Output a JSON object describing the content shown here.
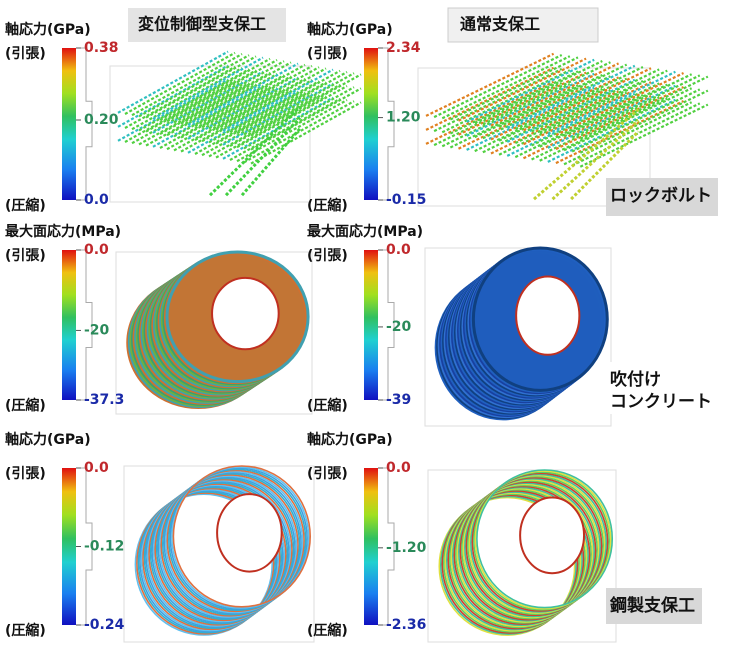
{
  "column_headers": [
    "変位制御型支保工",
    "通常支保工"
  ],
  "rows": [
    {
      "label_lines": [
        "ロックボルト"
      ],
      "panels": [
        {
          "quantity": "軸応力(GPa)",
          "tension": "(引張)",
          "compression": "(圧縮)",
          "lim": [
            0,
            0.38
          ],
          "ticks": [
            0.38,
            {
              "value": 0.2,
              "label": "0.20"
            },
            {
              "value": 0,
              "label": "0.0"
            }
          ]
        },
        {
          "quantity": "軸応力(GPa)",
          "tension": "(引張)",
          "compression": "(圧縮)",
          "lim": [
            -0.15,
            2.34
          ],
          "ticks": [
            2.34,
            {
              "value": 1.2,
              "label": "1.20"
            },
            -0.15
          ]
        }
      ]
    },
    {
      "label_lines": [
        "吹付け",
        "コンクリート"
      ],
      "panels": [
        {
          "quantity": "最大面応力(MPa)",
          "tension": "(引張)",
          "compression": "(圧縮)",
          "lim": [
            -37.3,
            0
          ],
          "ticks": [
            {
              "value": 0,
              "label": "0.0"
            },
            -20,
            -37.3
          ]
        },
        {
          "quantity": "最大面応力(MPa)",
          "tension": "(引張)",
          "compression": "(圧縮)",
          "lim": [
            -39,
            0
          ],
          "ticks": [
            {
              "value": 0,
              "label": "0.0"
            },
            -20,
            -39
          ]
        }
      ]
    },
    {
      "label_lines": [
        "鋼製支保工"
      ],
      "panels": [
        {
          "quantity": "軸応力(GPa)",
          "tension": "(引張)",
          "compression": "(圧縮)",
          "lim": [
            -0.24,
            0
          ],
          "ticks": [
            {
              "value": 0,
              "label": "0.0"
            },
            -0.12,
            -0.24
          ]
        },
        {
          "quantity": "軸応力(GPa)",
          "tension": "(引張)",
          "compression": "(圧縮)",
          "lim": [
            -2.36,
            0
          ],
          "ticks": [
            {
              "value": 0,
              "label": "0.0"
            },
            {
              "value": -1.2,
              "label": "-1.20"
            },
            -2.36
          ]
        }
      ]
    }
  ]
}
